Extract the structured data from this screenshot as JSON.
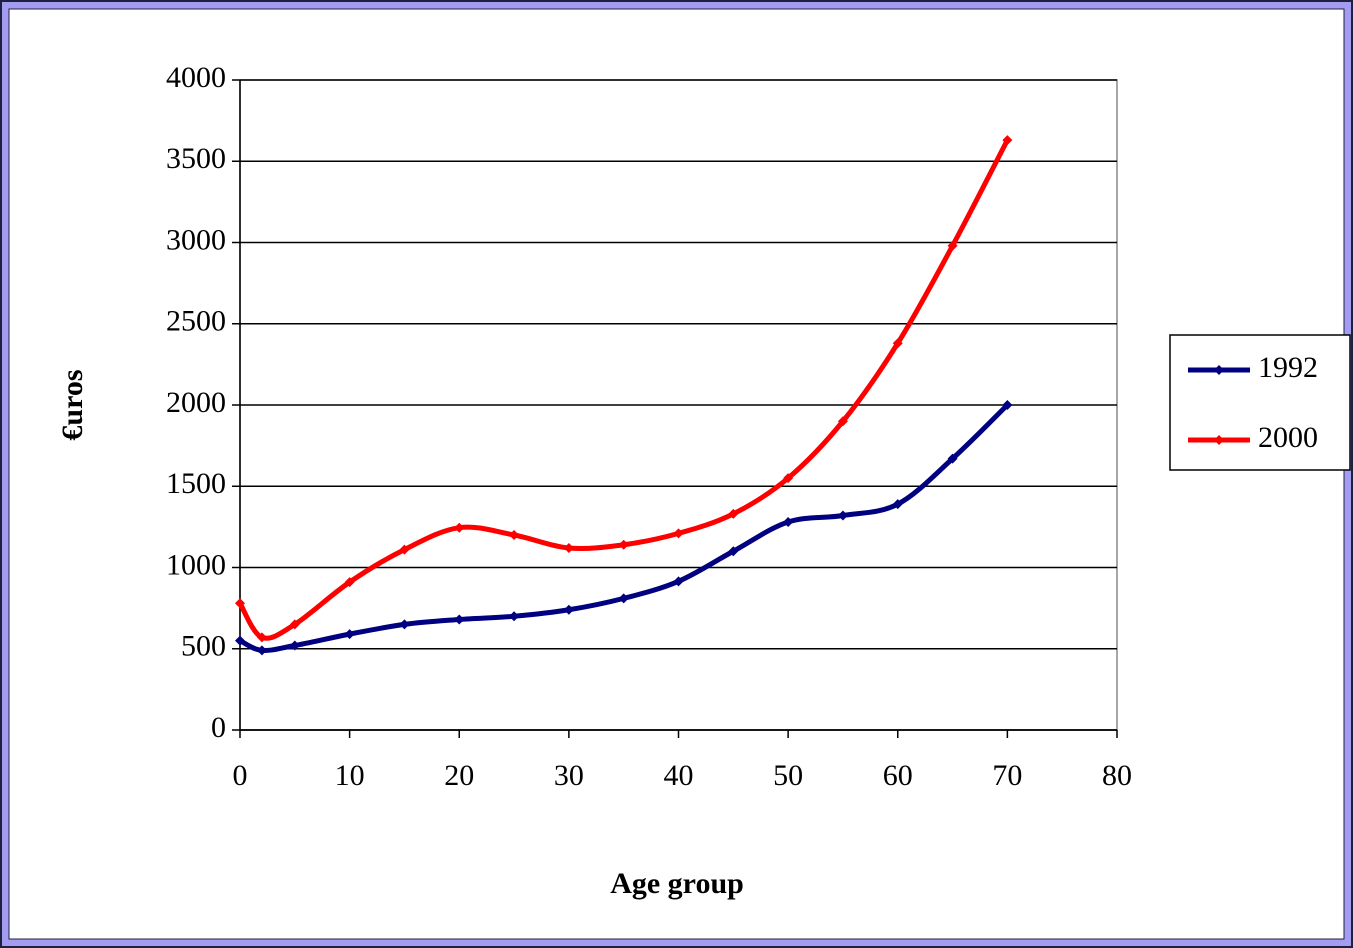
{
  "chart_data": {
    "type": "line",
    "x_label": "Age group",
    "y_label": "€uros",
    "x": [
      0,
      2,
      5,
      10,
      15,
      20,
      25,
      30,
      35,
      40,
      45,
      50,
      55,
      60,
      65,
      70
    ],
    "series": [
      {
        "name": "1992",
        "color": "#000080",
        "values": [
          550,
          490,
          520,
          590,
          650,
          680,
          700,
          740,
          810,
          915,
          1100,
          1280,
          1320,
          1390,
          1670,
          2000
        ]
      },
      {
        "name": "2000",
        "color": "#ff0000",
        "values": [
          780,
          570,
          650,
          910,
          1110,
          1245,
          1200,
          1120,
          1140,
          1210,
          1330,
          1550,
          1900,
          2380,
          2980,
          3630
        ]
      }
    ],
    "xlim": [
      0,
      80
    ],
    "xticks": [
      0,
      10,
      20,
      30,
      40,
      50,
      60,
      70,
      80
    ],
    "ylim": [
      0,
      4000
    ],
    "yticks": [
      0,
      500,
      1000,
      1500,
      2000,
      2500,
      3000,
      3500,
      4000
    ],
    "grid": true,
    "legend": "right",
    "smooth": true
  }
}
